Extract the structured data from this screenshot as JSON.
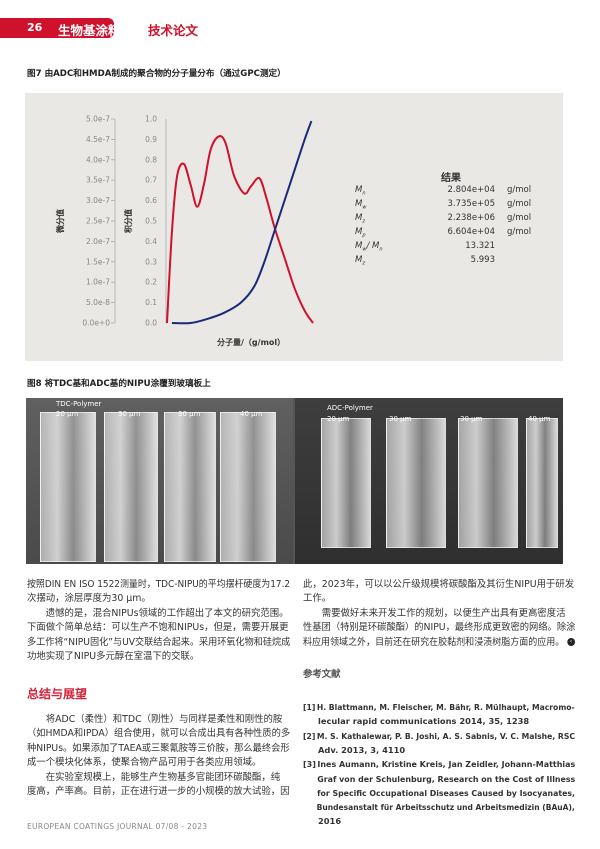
{
  "header": {
    "page_number": "26",
    "section": "生物基涂料",
    "category": "技术论文",
    "accent_color": "#d0112b"
  },
  "figure7": {
    "caption": "图7 由ADC和HMDA制成的聚合物的分子量分布（通过GPC测定）",
    "chart_data": {
      "type": "line",
      "xlabel": "分子量/（g/mol）",
      "ylabel_left": "微分值",
      "ylabel_right": "积分值",
      "left_ticks": [
        "5.0e-7",
        "4.5e-7",
        "4.0e-7",
        "3.5e-7",
        "3.0e-7",
        "2.5e-7",
        "2.0e-7",
        "1.5e-7",
        "1.0e-7",
        "5.0e-8",
        "0.0e+0"
      ],
      "right_ticks": [
        "1.0",
        "0.9",
        "0.8",
        "0.7",
        "0.6",
        "0.5",
        "0.4",
        "0.3",
        "0.2",
        "0.1",
        "0.0"
      ],
      "ylim_left": [
        0,
        5e-07
      ],
      "ylim_right": [
        0,
        1
      ],
      "series": [
        {
          "axis": "left",
          "color": "#d0112b",
          "x": [
            0,
            0.034,
            0.069,
            0.115,
            0.161,
            0.207,
            0.253,
            0.299,
            0.356,
            0.402,
            0.46,
            0.529,
            0.575,
            0.632,
            0.678,
            0.736,
            0.805,
            0.874,
            0.943,
            1.0
          ],
          "values": [
            0,
            2.25e-07,
            3.6e-07,
            3.9e-07,
            3.4e-07,
            2.85e-07,
            3.4e-07,
            4.25e-07,
            4.575e-07,
            4.4e-07,
            3.6e-07,
            3.175e-07,
            3.35e-07,
            3.55e-07,
            3.1e-07,
            2.35e-07,
            1.6e-07,
            8.5e-08,
            3e-08,
            0
          ]
        },
        {
          "axis": "right",
          "color": "#1a2a78",
          "x": [
            0.034,
            0.161,
            0.276,
            0.391,
            0.506,
            0.598,
            0.667,
            0.736,
            0.805,
            0.874,
            0.943,
            0.989
          ],
          "values": [
            0,
            0,
            0.02,
            0.05,
            0.1,
            0.18,
            0.3,
            0.45,
            0.6,
            0.75,
            0.9,
            0.99
          ]
        }
      ]
    },
    "results": {
      "title": "结果",
      "rows": [
        {
          "label": "M",
          "sub": "n",
          "value": "2.804e+04",
          "unit": "g/mol"
        },
        {
          "label": "M",
          "sub": "w",
          "value": "3.735e+05",
          "unit": "g/mol"
        },
        {
          "label": "M",
          "sub": "z",
          "value": "2.238e+06",
          "unit": "g/mol"
        },
        {
          "label": "M",
          "sub": "p",
          "value": "6.604e+04",
          "unit": "g/mol"
        },
        {
          "label": "M",
          "sub": "w",
          "label2": "/ M",
          "sub2": "n",
          "value": "13.321",
          "unit": ""
        },
        {
          "label": "M",
          "sub": "z",
          "value": "5.993",
          "unit": ""
        }
      ]
    }
  },
  "figure8": {
    "caption": "图8 将TDC基和ADC基的NIPU涂覆到玻璃板上",
    "left": {
      "title": "TDC-Polymer",
      "labels": [
        "20 µm",
        "30 µm",
        "30 µm",
        "40 µm"
      ]
    },
    "right": {
      "title": "ADC-Polymer",
      "labels": [
        "20 µm",
        "30 µm",
        "30 µm",
        "40 µm"
      ]
    }
  },
  "left_column": {
    "p1": [
      "按照DIN EN ISO 1522测量时，TDC-NIPU的平均摆杆硬度为17.2",
      "次摆动，涂层厚度为30 μm。"
    ],
    "p2": [
      "　　遗憾的是，混合NIPUs领域的工作超出了本文的研究范围。",
      "下面做个简单总结：可以生产不饱和NIPUs，但是，需要开展更",
      "多工作将“NIPU固化”与UV交联结合起来。采用环氧化物和硅烷成",
      "功地实现了NIPU多元醇在室温下的交联。"
    ],
    "heading": "总结与展望",
    "p3": [
      "　　将ADC（柔性）和TDC（刚性）与同样是柔性和刚性的胺",
      "（如HMDA和IPDA）组合使用，就可以合成出具有各种性质的多",
      "种NIPUs。如果添加了TAEA或三聚氰胺等三价胺，那么最终会形",
      "成一个模块化体系，使聚合物产品可用于各类应用领域。"
    ],
    "p4": [
      "　　在实验室规模上，能够生产生物基多官能团环碳酸酯，纯",
      "度高，产率高。目前，正在进行进一步的小规模的放大试验，因"
    ]
  },
  "right_column": {
    "p1": [
      "此，2023年，可以以公斤级规模将碳酸酯及其衍生NIPU用于研发",
      "工作。"
    ],
    "p2": [
      "　　需要做好未来开发工作的规划，以便生产出具有更高密度活",
      "性基团（特别是环碳酸酯）的NIPU，最终形成更致密的网络。除涂",
      "料应用领域之外，目前还在研究在胶黏剂和浸渍树脂方面的应用。"
    ],
    "end_icon": "end-of-article-icon",
    "refs_title": "参考文献",
    "refs": [
      {
        "no": "[1]",
        "lines": [
          "H. Blattmann, M. Fleischer, M. Bähr, R. Mülhaupt, Macromo-",
          "lecular rapid communications 2014, 35, 1238"
        ]
      },
      {
        "no": "[2]",
        "lines": [
          "M. S. Kathalewar, P. B. Joshi, A. S. Sabnis, V. C. Malshe, RSC",
          "Adv. 2013, 3, 4110"
        ]
      },
      {
        "no": "[3]",
        "lines": [
          "Ines Aumann, Kristine Kreis, Jan Zeidler, Johann-Matthias",
          "Graf von der Schulenburg, Research on the Cost of Illness",
          "for Specific Occupational Diseases Caused by Isocyanates,",
          "Bundesanstalt für Arbeitsschutz und Arbeitsmedizin (BAuA),",
          "2016"
        ]
      }
    ]
  },
  "footer": "EUROPEAN COATINGS JOURNAL 07/08 - 2023"
}
